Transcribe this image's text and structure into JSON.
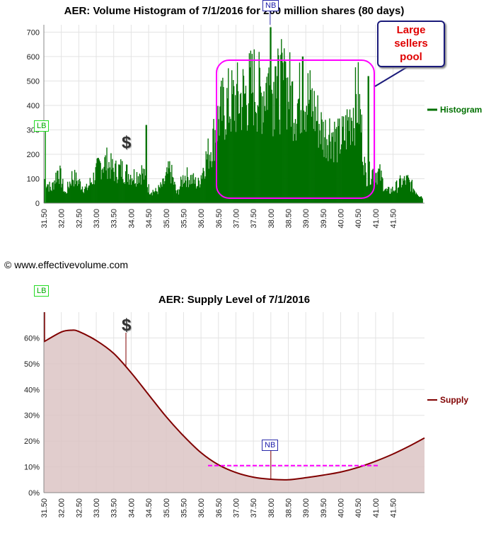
{
  "credit": "© www.effectivevolume.com",
  "chart_data": [
    {
      "type": "bar",
      "title": "AER: Volume Histogram of 7/1/2016 for 200 million shares (80 days)",
      "xlim": [
        31.5,
        42.4
      ],
      "ylim": [
        0,
        730
      ],
      "y_ticks": [
        "0",
        "100",
        "200",
        "300",
        "400",
        "500",
        "600",
        "700"
      ],
      "x_ticks": [
        "31.50",
        "32.00",
        "32.50",
        "33.00",
        "33.50",
        "34.00",
        "34.50",
        "35.00",
        "35.50",
        "36.00",
        "36.50",
        "37.00",
        "37.50",
        "38.00",
        "38.50",
        "39.00",
        "39.50",
        "40.00",
        "40.50",
        "41.00",
        "41.50"
      ],
      "legend": "Histogram",
      "legend_position": "right",
      "series_color": "#007000",
      "grid": true,
      "profile": {
        "x": [
          31.5,
          31.7,
          31.9,
          32.1,
          32.3,
          32.5,
          32.7,
          32.9,
          33.1,
          33.3,
          33.5,
          33.7,
          33.9,
          34.1,
          34.3,
          34.5,
          34.7,
          34.9,
          35.1,
          35.3,
          35.5,
          35.7,
          35.9,
          36.1,
          36.3,
          36.5,
          36.7,
          36.9,
          37.1,
          37.3,
          37.5,
          37.7,
          37.9,
          38.1,
          38.3,
          38.5,
          38.7,
          38.9,
          39.1,
          39.3,
          39.5,
          39.7,
          39.9,
          40.1,
          40.3,
          40.5,
          40.7,
          40.9,
          41.1,
          41.3,
          41.5,
          41.7,
          41.9,
          42.1,
          42.3
        ],
        "values": [
          110,
          60,
          150,
          40,
          120,
          90,
          60,
          110,
          170,
          180,
          140,
          150,
          130,
          120,
          140,
          60,
          50,
          80,
          150,
          40,
          120,
          110,
          80,
          180,
          260,
          380,
          430,
          440,
          460,
          480,
          520,
          470,
          540,
          480,
          520,
          500,
          430,
          480,
          450,
          380,
          300,
          320,
          270,
          300,
          400,
          460,
          120,
          140,
          130,
          50,
          60,
          90,
          100,
          60,
          30
        ]
      },
      "annotations": {
        "lb_label": "LB",
        "nb_label": "NB",
        "callout_lines": [
          "Large",
          "sellers",
          "pool"
        ],
        "dollar": "$"
      }
    },
    {
      "type": "area",
      "title": "AER: Supply Level of 7/1/2016",
      "xlim": [
        31.5,
        42.4
      ],
      "ylim": [
        0,
        70
      ],
      "y_ticks": [
        "0%",
        "10%",
        "20%",
        "30%",
        "40%",
        "50%",
        "60%"
      ],
      "x_ticks": [
        "31.50",
        "32.00",
        "32.50",
        "33.00",
        "33.50",
        "34.00",
        "34.50",
        "35.00",
        "35.50",
        "36.00",
        "36.50",
        "37.00",
        "37.50",
        "38.00",
        "38.50",
        "39.00",
        "39.50",
        "40.00",
        "40.50",
        "41.00",
        "41.50"
      ],
      "legend": "Supply",
      "legend_position": "right",
      "line_color": "#800000",
      "fill_color": "#dcc4c4",
      "grid": true,
      "series": {
        "x": [
          31.5,
          32.0,
          32.3,
          32.5,
          33.0,
          33.5,
          34.0,
          34.5,
          35.0,
          35.5,
          36.0,
          36.5,
          37.0,
          37.5,
          38.0,
          38.5,
          39.0,
          39.5,
          40.0,
          40.5,
          41.0,
          41.5,
          42.0,
          42.4
        ],
        "values": [
          58.5,
          62.3,
          63.0,
          62.5,
          59.0,
          54.0,
          46.5,
          38.0,
          29.5,
          22.0,
          15.5,
          10.8,
          7.8,
          6.0,
          5.2,
          5.0,
          5.8,
          6.8,
          8.0,
          9.8,
          12.2,
          15.0,
          18.3,
          21.2
        ]
      },
      "reference_line": {
        "value": 10.5,
        "x_from": 36.2,
        "x_to": 41.1,
        "color": "#ff00ff"
      },
      "annotations": {
        "lb_label": "LB",
        "nb_label": "NB",
        "dollar": "$"
      }
    }
  ]
}
